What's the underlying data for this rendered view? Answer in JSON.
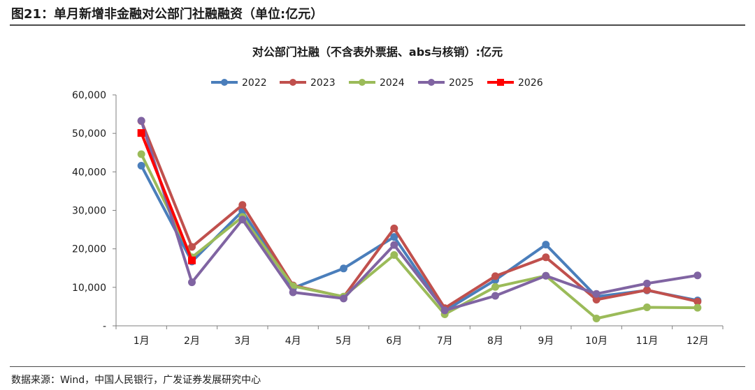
{
  "figure": {
    "title": "图21：单月新增非金融对公部门社融融资（单位:亿元）",
    "source": "数据来源：Wind，中国人民银行，广发证券发展研究中心"
  },
  "chart_data": {
    "type": "line",
    "title": "对公部门社融（不含表外票据、abs与核销）:亿元",
    "xlabel": "",
    "ylabel": "",
    "categories": [
      "1月",
      "2月",
      "3月",
      "4月",
      "5月",
      "6月",
      "7月",
      "8月",
      "9月",
      "10月",
      "11月",
      "12月"
    ],
    "ylim": [
      0,
      60000
    ],
    "yticks": [
      0,
      10000,
      20000,
      30000,
      40000,
      50000,
      60000
    ],
    "ytick_labels": [
      "-",
      "10,000",
      "20,000",
      "30,000",
      "40,000",
      "50,000",
      "60,000"
    ],
    "legend_position": "top-center",
    "grid": false,
    "series": [
      {
        "name": "2022",
        "color": "#4a7ebb",
        "marker": "circle",
        "values": [
          41600,
          16700,
          29800,
          9800,
          14900,
          23100,
          3900,
          11900,
          21100,
          7600,
          9200,
          6600
        ]
      },
      {
        "name": "2023",
        "color": "#c0504d",
        "marker": "circle",
        "values": [
          53200,
          20500,
          31400,
          10500,
          7500,
          25300,
          4600,
          12900,
          17800,
          6800,
          9300,
          6300
        ]
      },
      {
        "name": "2024",
        "color": "#9bbb59",
        "marker": "circle",
        "values": [
          44600,
          17800,
          28300,
          10300,
          7600,
          18400,
          3000,
          10100,
          13000,
          1900,
          4800,
          4700
        ]
      },
      {
        "name": "2025",
        "color": "#8064a2",
        "marker": "circle",
        "values": [
          53300,
          11300,
          27600,
          8700,
          7100,
          21000,
          4000,
          7800,
          13000,
          8300,
          11000,
          13100
        ]
      },
      {
        "name": "2026",
        "color": "#ff0000",
        "marker": "square",
        "values": [
          50100,
          17000,
          null,
          null,
          null,
          null,
          null,
          null,
          null,
          null,
          null,
          null
        ]
      }
    ]
  }
}
